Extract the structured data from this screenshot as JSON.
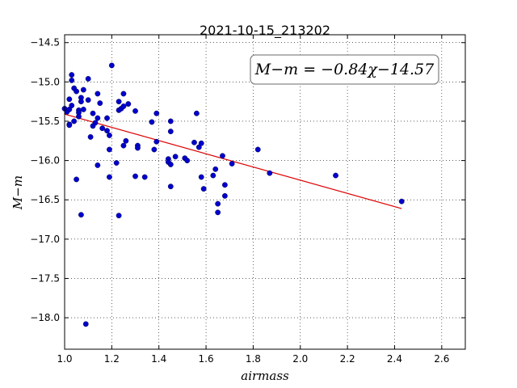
{
  "chart_data": {
    "type": "scatter",
    "title": "2021-10-15_213202",
    "xlabel": "airmass",
    "ylabel": "M−m",
    "xlim": [
      1.0,
      2.7
    ],
    "ylim": [
      -18.4,
      -14.4
    ],
    "xticks": [
      "1.0",
      "1.2",
      "1.4",
      "1.6",
      "1.8",
      "2.0",
      "2.2",
      "2.4",
      "2.6"
    ],
    "yticks": [
      "−14.5",
      "−15.0",
      "−15.5",
      "−16.0",
      "−16.5",
      "−17.0",
      "−17.5",
      "−18.0"
    ],
    "grid": true,
    "annotation": "M−m = −0.84χ−14.57",
    "colors": {
      "points": "#0000cc",
      "fit": "#dd0000"
    },
    "fit": {
      "slope": -0.84,
      "intercept": -14.57,
      "x_range": [
        1.0,
        2.43
      ]
    },
    "points": [
      [
        1.0,
        -15.34
      ],
      [
        1.01,
        -15.38
      ],
      [
        1.02,
        -15.22
      ],
      [
        1.02,
        -15.35
      ],
      [
        1.02,
        -15.54
      ],
      [
        1.02,
        -15.55
      ],
      [
        1.03,
        -14.91
      ],
      [
        1.03,
        -14.98
      ],
      [
        1.03,
        -15.3
      ],
      [
        1.04,
        -15.08
      ],
      [
        1.04,
        -15.5
      ],
      [
        1.05,
        -16.24
      ],
      [
        1.05,
        -15.12
      ],
      [
        1.06,
        -15.36
      ],
      [
        1.06,
        -15.39
      ],
      [
        1.06,
        -15.44
      ],
      [
        1.07,
        -15.2
      ],
      [
        1.07,
        -15.25
      ],
      [
        1.07,
        -16.69
      ],
      [
        1.08,
        -15.1
      ],
      [
        1.08,
        -15.35
      ],
      [
        1.09,
        -18.08
      ],
      [
        1.1,
        -14.96
      ],
      [
        1.1,
        -15.23
      ],
      [
        1.11,
        -15.7
      ],
      [
        1.12,
        -15.4
      ],
      [
        1.12,
        -15.56
      ],
      [
        1.13,
        -15.52
      ],
      [
        1.14,
        -15.46
      ],
      [
        1.14,
        -15.15
      ],
      [
        1.14,
        -16.06
      ],
      [
        1.15,
        -15.27
      ],
      [
        1.16,
        -15.59
      ],
      [
        1.18,
        -15.46
      ],
      [
        1.18,
        -15.62
      ],
      [
        1.19,
        -15.68
      ],
      [
        1.19,
        -15.86
      ],
      [
        1.19,
        -16.21
      ],
      [
        1.2,
        -14.79
      ],
      [
        1.22,
        -16.03
      ],
      [
        1.23,
        -16.7
      ],
      [
        1.23,
        -15.25
      ],
      [
        1.23,
        -15.36
      ],
      [
        1.24,
        -15.34
      ],
      [
        1.25,
        -15.81
      ],
      [
        1.25,
        -15.15
      ],
      [
        1.25,
        -15.31
      ],
      [
        1.26,
        -15.75
      ],
      [
        1.27,
        -15.28
      ],
      [
        1.3,
        -16.2
      ],
      [
        1.3,
        -15.37
      ],
      [
        1.31,
        -15.81
      ],
      [
        1.31,
        -15.84
      ],
      [
        1.34,
        -16.21
      ],
      [
        1.37,
        -15.51
      ],
      [
        1.38,
        -15.86
      ],
      [
        1.39,
        -15.4
      ],
      [
        1.39,
        -15.76
      ],
      [
        1.44,
        -15.98
      ],
      [
        1.44,
        -16.02
      ],
      [
        1.45,
        -15.5
      ],
      [
        1.45,
        -15.63
      ],
      [
        1.45,
        -16.05
      ],
      [
        1.45,
        -16.33
      ],
      [
        1.47,
        -15.95
      ],
      [
        1.51,
        -15.97
      ],
      [
        1.52,
        -16.0
      ],
      [
        1.55,
        -15.77
      ],
      [
        1.56,
        -15.4
      ],
      [
        1.57,
        -15.83
      ],
      [
        1.58,
        -15.78
      ],
      [
        1.58,
        -16.21
      ],
      [
        1.59,
        -16.36
      ],
      [
        1.63,
        -16.19
      ],
      [
        1.64,
        -16.11
      ],
      [
        1.65,
        -16.55
      ],
      [
        1.65,
        -16.66
      ],
      [
        1.67,
        -15.94
      ],
      [
        1.68,
        -16.31
      ],
      [
        1.68,
        -16.45
      ],
      [
        1.71,
        -16.04
      ],
      [
        1.82,
        -15.86
      ],
      [
        1.87,
        -16.16
      ],
      [
        2.15,
        -16.19
      ],
      [
        2.43,
        -16.52
      ]
    ]
  }
}
